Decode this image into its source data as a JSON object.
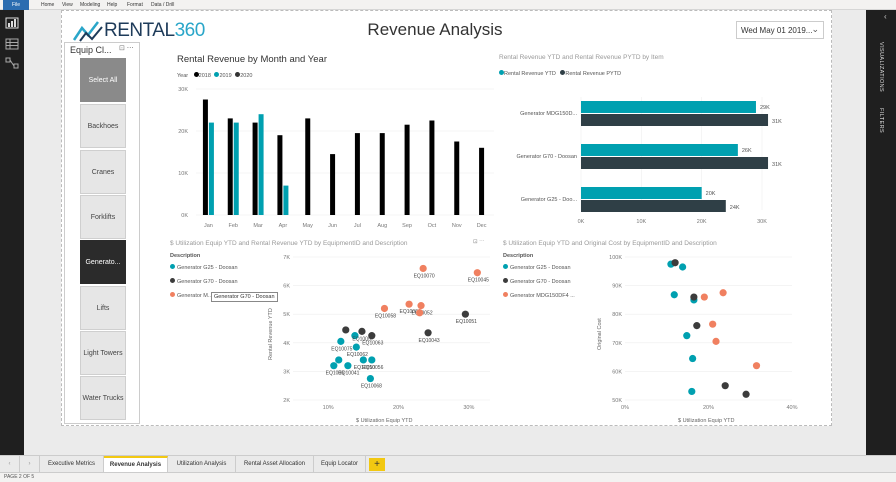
{
  "ribbon": {
    "tabs": [
      "File",
      "Home",
      "View",
      "Modeling",
      "Help",
      "Format",
      "Data / Drill"
    ]
  },
  "header": {
    "logo_word": "RENTAL",
    "logo_number": "360",
    "page_title": "Revenue Analysis",
    "date_value": "Wed May 01 2019..."
  },
  "slicer": {
    "title": "Equip Cl...",
    "tools": "⊡ ⋯",
    "items": [
      "Select All",
      "Backhoes",
      "Cranes",
      "Forklifts",
      "Generato...",
      "Lifts",
      "Light Towers",
      "Water Trucks"
    ],
    "selected": "Generato..."
  },
  "right_rail": {
    "visualizations": "VISUALIZATIONS",
    "filters": "FILTERS"
  },
  "bar_chart": {
    "title": "Rental Revenue by Month and Year",
    "legend_title": "Year",
    "colors": {
      "2018": "#000000",
      "2019": "#00a0b0",
      "2020": "#333333"
    }
  },
  "hbar_chart": {
    "title": "Rental Revenue YTD and Rental Revenue PYTD by Item",
    "legend": [
      "Rental Revenue YTD",
      "Rental Revenue PYTD"
    ],
    "colors": {
      "ytd": "#00a0b0",
      "pytd": "#2f3f46"
    }
  },
  "scatter1": {
    "title": "$ Utilization Equip YTD and Rental Revenue YTD by EquipmentID and Description",
    "legend_title": "Description",
    "legend": [
      "Generator G25 - Doosan",
      "Generator G70 - Doosan",
      "Generator M..."
    ],
    "xlabel": "$ Utilization Equip YTD",
    "ylabel": "Rental Revenue YTD",
    "tooltip": "Generator G70 - Doosan",
    "tools": "⊡ ⋯",
    "colors": {
      "g25": "#00a0b0",
      "g70": "#3c3c3c",
      "mdg": "#f08060"
    }
  },
  "scatter2": {
    "title": "$ Utilization Equip YTD and Original Cost by EquipmentID and Description",
    "legend_title": "Description",
    "legend": [
      "Generator G25 - Doosan",
      "Generator G70 - Doosan",
      "Generator MDG150DF4 ..."
    ],
    "xlabel": "$ Utilization Equip YTD",
    "ylabel": "Original Cost"
  },
  "chart_data": [
    {
      "type": "bar",
      "title": "Rental Revenue by Month and Year",
      "categories": [
        "Jan",
        "Feb",
        "Mar",
        "Apr",
        "May",
        "Jun",
        "Jul",
        "Aug",
        "Sep",
        "Oct",
        "Nov",
        "Dec"
      ],
      "series": [
        {
          "name": "2018",
          "values": [
            27500,
            23000,
            22000,
            19000,
            23000,
            14500,
            19500,
            19500,
            21500,
            22500,
            17500,
            16000
          ]
        },
        {
          "name": "2019",
          "values": [
            22000,
            22000,
            24000,
            7000,
            null,
            null,
            null,
            null,
            null,
            null,
            null,
            null
          ]
        },
        {
          "name": "2020",
          "values": [
            null,
            null,
            null,
            null,
            null,
            null,
            null,
            null,
            null,
            null,
            null,
            null
          ]
        }
      ],
      "ylim": [
        0,
        30000
      ],
      "yticks": [
        "0K",
        "10K",
        "20K",
        "30K"
      ],
      "legend": "top-left"
    },
    {
      "type": "bar",
      "orientation": "horizontal",
      "title": "Rental Revenue YTD and Rental Revenue PYTD by Item",
      "categories": [
        "Generator MDG150D...",
        "Generator G70 - Doosan",
        "Generator G25 - Doo..."
      ],
      "series": [
        {
          "name": "Rental Revenue YTD",
          "values": [
            29000,
            26000,
            20000
          ],
          "labels": [
            "29K",
            "26K",
            "20K"
          ]
        },
        {
          "name": "Rental Revenue PYTD",
          "values": [
            31000,
            31000,
            24000
          ],
          "labels": [
            "31K",
            "31K",
            "24K"
          ]
        }
      ],
      "xlim": [
        0,
        30000
      ],
      "xticks": [
        "0K",
        "10K",
        "20K",
        "30K"
      ],
      "legend": "top-left"
    },
    {
      "type": "scatter",
      "title": "$ Utilization Equip YTD and Rental Revenue YTD by EquipmentID and Description",
      "xlabel": "$ Utilization Equip YTD",
      "ylabel": "Rental Revenue YTD",
      "xlim": [
        5,
        33
      ],
      "ylim": [
        2000,
        7000
      ],
      "xticks": [
        "10%",
        "20%",
        "30%"
      ],
      "yticks": [
        "2K",
        "3K",
        "4K",
        "5K",
        "6K",
        "7K"
      ],
      "points": [
        {
          "series": "g25",
          "x": 13.8,
          "y": 4250,
          "label": ""
        },
        {
          "series": "g25",
          "x": 11.8,
          "y": 4050,
          "label": "EQ10075"
        },
        {
          "series": "g25",
          "x": 11.5,
          "y": 3400,
          "label": ""
        },
        {
          "series": "g25",
          "x": 10.8,
          "y": 3200,
          "label": "EQ1006"
        },
        {
          "series": "g25",
          "x": 12.8,
          "y": 3200,
          "label": "EQ10041"
        },
        {
          "series": "g25",
          "x": 15.0,
          "y": 3400,
          "label": "EQ10050"
        },
        {
          "series": "g25",
          "x": 16.2,
          "y": 3400,
          "label": "EQ10056"
        },
        {
          "series": "g25",
          "x": 16.0,
          "y": 2750,
          "label": "EQ10068"
        },
        {
          "series": "g25",
          "x": 14.0,
          "y": 3850,
          "label": "EQ10062"
        },
        {
          "series": "g70",
          "x": 14.8,
          "y": 4400,
          "label": "EQ10057"
        },
        {
          "series": "g70",
          "x": 16.2,
          "y": 4250,
          "label": "EQ10063"
        },
        {
          "series": "g70",
          "x": 24.2,
          "y": 4350,
          "label": "EQ10043"
        },
        {
          "series": "g70",
          "x": 29.5,
          "y": 5000,
          "label": "EQ10051"
        },
        {
          "series": "g70",
          "x": 12.5,
          "y": 4450,
          "label": ""
        },
        {
          "series": "mdg",
          "x": 23.5,
          "y": 6600,
          "label": "EQ10070"
        },
        {
          "series": "mdg",
          "x": 31.2,
          "y": 6450,
          "label": "EQ10045"
        },
        {
          "series": "mdg",
          "x": 21.5,
          "y": 5350,
          "label": "EQ10064"
        },
        {
          "series": "mdg",
          "x": 23.2,
          "y": 5300,
          "label": "EQ10052"
        },
        {
          "series": "mdg",
          "x": 18.0,
          "y": 5200,
          "label": "EQ10058"
        },
        {
          "series": "mdg",
          "x": 23.0,
          "y": 5050,
          "label": ""
        }
      ]
    },
    {
      "type": "scatter",
      "title": "$ Utilization Equip YTD and Original Cost by EquipmentID and Description",
      "xlabel": "$ Utilization Equip YTD",
      "ylabel": "Original Cost",
      "xlim": [
        0,
        40
      ],
      "ylim": [
        50000,
        100000
      ],
      "xticks": [
        "0%",
        "20%",
        "40%"
      ],
      "yticks": [
        "50K",
        "60K",
        "70K",
        "80K",
        "90K",
        "100K"
      ],
      "points": [
        {
          "series": "g25",
          "x": 11.0,
          "y": 97500
        },
        {
          "series": "g25",
          "x": 13.8,
          "y": 96500
        },
        {
          "series": "g25",
          "x": 11.8,
          "y": 86800
        },
        {
          "series": "g25",
          "x": 16.5,
          "y": 85000
        },
        {
          "series": "g25",
          "x": 14.8,
          "y": 72500
        },
        {
          "series": "g25",
          "x": 16.2,
          "y": 64500
        },
        {
          "series": "g25",
          "x": 16.0,
          "y": 53000
        },
        {
          "series": "g70",
          "x": 12.0,
          "y": 98000
        },
        {
          "series": "g70",
          "x": 16.5,
          "y": 86000
        },
        {
          "series": "g70",
          "x": 17.2,
          "y": 76000
        },
        {
          "series": "g70",
          "x": 24.0,
          "y": 55000
        },
        {
          "series": "g70",
          "x": 29.0,
          "y": 52000
        },
        {
          "series": "mdg",
          "x": 23.5,
          "y": 87500
        },
        {
          "series": "mdg",
          "x": 19.0,
          "y": 86000
        },
        {
          "series": "mdg",
          "x": 21.0,
          "y": 76500
        },
        {
          "series": "mdg",
          "x": 21.8,
          "y": 70500
        },
        {
          "series": "mdg",
          "x": 31.5,
          "y": 62000
        }
      ]
    }
  ],
  "tabs": {
    "items": [
      "Executive Metrics",
      "Revenue Analysis",
      "Utilization Analysis",
      "Rental Asset Allocation",
      "Equip Locator"
    ],
    "active": "Revenue Analysis",
    "add": "+"
  },
  "status": {
    "text": "PAGE 2 OF 5"
  }
}
